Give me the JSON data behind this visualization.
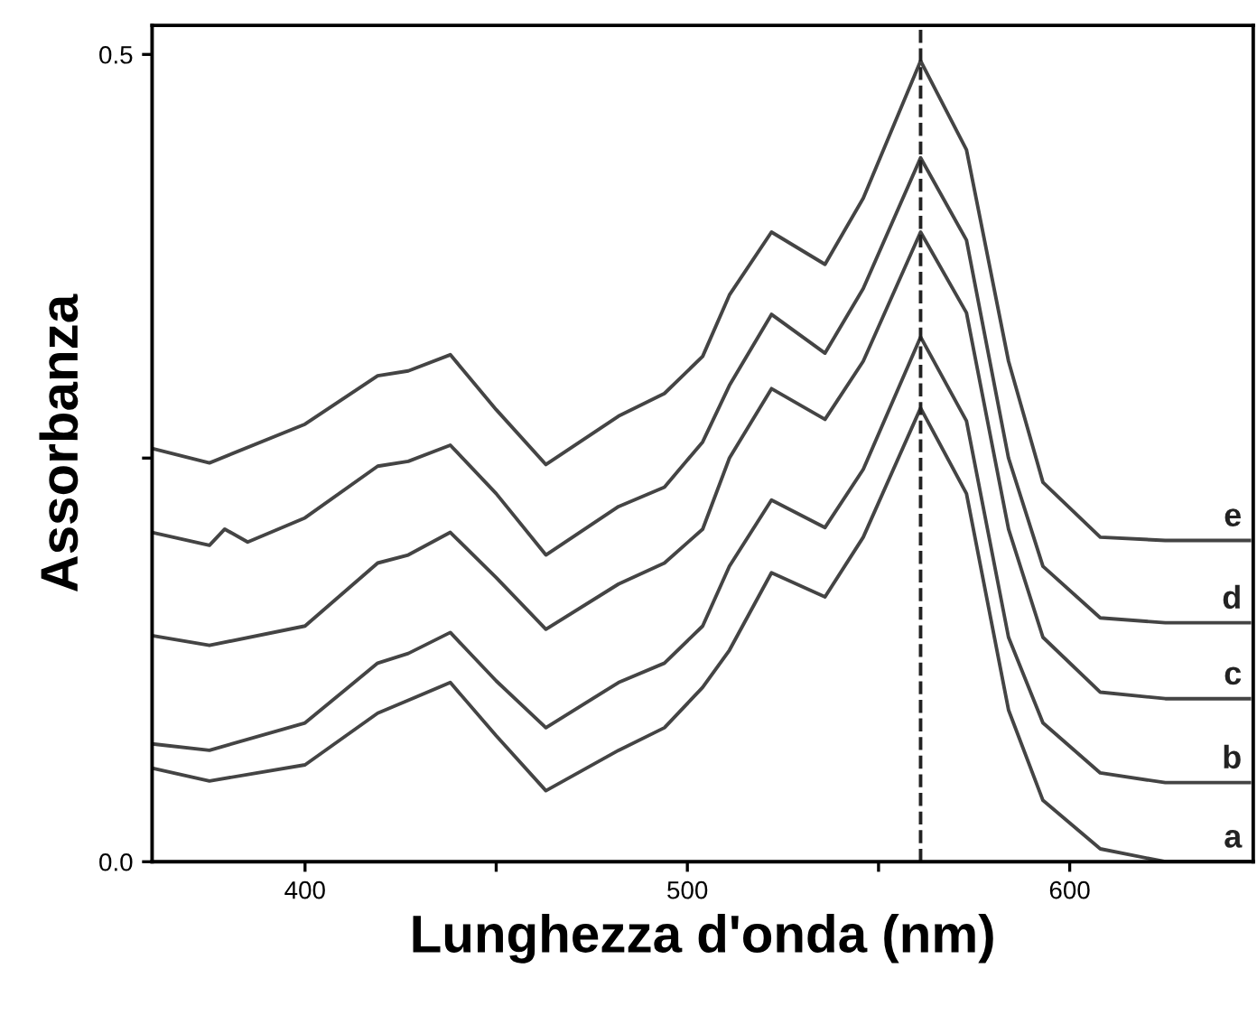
{
  "chart_data": {
    "type": "line",
    "xlabel": "Lunghezza d'onda (nm)",
    "ylabel": "Assorbanza",
    "x": [
      360,
      375,
      400,
      419,
      427,
      438,
      450,
      463,
      482,
      494,
      504,
      511,
      522,
      536,
      546,
      561,
      573,
      584,
      593,
      608,
      625,
      647
    ],
    "series": [
      {
        "name": "a",
        "color": "#444444",
        "values": [
          0.058,
          0.05,
          0.06,
          0.092,
          0.1,
          0.111,
          0.078,
          0.044,
          0.069,
          0.083,
          0.108,
          0.131,
          0.179,
          0.164,
          0.201,
          0.281,
          0.228,
          0.094,
          0.038,
          0.008,
          0.0,
          0.0
        ]
      },
      {
        "name": "b",
        "color": "#444444",
        "values": [
          0.073,
          0.069,
          0.086,
          0.123,
          0.129,
          0.142,
          0.112,
          0.083,
          0.111,
          0.123,
          0.146,
          0.183,
          0.224,
          0.207,
          0.243,
          0.325,
          0.273,
          0.139,
          0.086,
          0.055,
          0.049,
          0.049
        ]
      },
      {
        "name": "c",
        "color": "#444444",
        "values": [
          0.14,
          0.134,
          0.146,
          0.185,
          0.19,
          0.204,
          0.176,
          0.144,
          0.172,
          0.185,
          0.206,
          0.25,
          0.293,
          0.274,
          0.31,
          0.39,
          0.34,
          0.206,
          0.139,
          0.105,
          0.101,
          0.101
        ]
      },
      {
        "name": "d",
        "color": "#444444",
        "x": [
          360,
          375,
          379,
          385,
          400,
          419,
          427,
          438,
          450,
          463,
          482,
          494,
          504,
          511,
          522,
          536,
          546,
          561,
          573,
          584,
          593,
          608,
          625,
          647
        ],
        "values": [
          0.204,
          0.196,
          0.206,
          0.198,
          0.213,
          0.245,
          0.248,
          0.258,
          0.228,
          0.19,
          0.22,
          0.232,
          0.26,
          0.295,
          0.339,
          0.315,
          0.355,
          0.436,
          0.385,
          0.25,
          0.183,
          0.151,
          0.148,
          0.148
        ]
      },
      {
        "name": "e",
        "color": "#444444",
        "values": [
          0.256,
          0.247,
          0.271,
          0.301,
          0.304,
          0.314,
          0.28,
          0.246,
          0.276,
          0.29,
          0.313,
          0.351,
          0.39,
          0.37,
          0.411,
          0.496,
          0.441,
          0.31,
          0.235,
          0.201,
          0.199,
          0.199
        ]
      }
    ],
    "xlim": [
      360,
      648
    ],
    "ylim": [
      0,
      0.518
    ],
    "xticks": [
      400,
      {
        "value": 450,
        "label": null
      },
      500,
      {
        "value": 550,
        "label": null
      },
      600
    ],
    "yticks": [
      {
        "value": 0,
        "label": "0.0"
      },
      {
        "value": 0.25,
        "label": null
      },
      {
        "value": 0.5,
        "label": "0.5"
      }
    ],
    "ref_lines": [
      {
        "axis": "x",
        "value": 561,
        "line_style": "dashed",
        "color": "#222222"
      }
    ],
    "grid": false,
    "legend": false,
    "marker": "none",
    "line_style": "solid"
  }
}
